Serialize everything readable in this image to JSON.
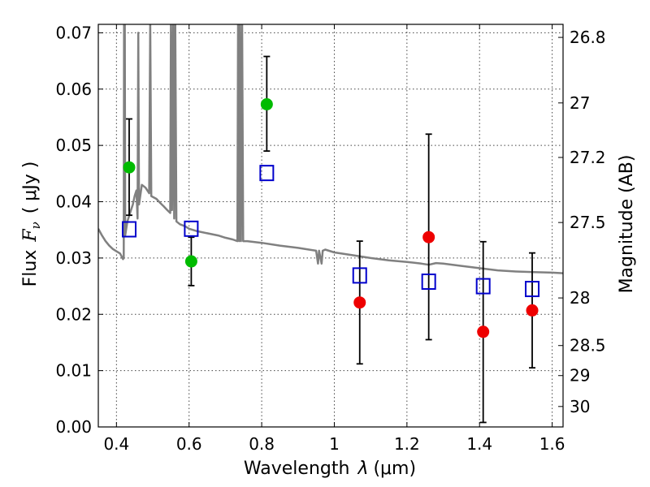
{
  "chart_data": {
    "type": "scatter",
    "xlabel": "Wavelength",
    "xlabel_symbol": "λ",
    "xlabel_unit": "(μm)",
    "ylabel": "Flux",
    "ylabel_symbol": "F",
    "ylabel_sub": "ν",
    "ylabel_unit": "( μJy )",
    "y2label": "Magnitude (AB)",
    "xlim": [
      0.35,
      1.63
    ],
    "ylim": [
      0.0,
      0.0715
    ],
    "grid": true,
    "x_ticks": [
      {
        "v": 0.4,
        "label": "0.4"
      },
      {
        "v": 0.6,
        "label": "0.6"
      },
      {
        "v": 0.8,
        "label": "0.8"
      },
      {
        "v": 1.0,
        "label": "1"
      },
      {
        "v": 1.2,
        "label": "1.2"
      },
      {
        "v": 1.4,
        "label": "1.4"
      },
      {
        "v": 1.6,
        "label": "1.6"
      }
    ],
    "y_ticks": [
      {
        "v": 0.0,
        "label": "0.00"
      },
      {
        "v": 0.01,
        "label": "0.01"
      },
      {
        "v": 0.02,
        "label": "0.02"
      },
      {
        "v": 0.03,
        "label": "0.03"
      },
      {
        "v": 0.04,
        "label": "0.04"
      },
      {
        "v": 0.05,
        "label": "0.05"
      },
      {
        "v": 0.06,
        "label": "0.06"
      },
      {
        "v": 0.07,
        "label": "0.07"
      }
    ],
    "mag_ticks": [
      {
        "mag": 26.8,
        "label": "26.8"
      },
      {
        "mag": 27.0,
        "label": "27"
      },
      {
        "mag": 27.2,
        "label": "27.2"
      },
      {
        "mag": 27.5,
        "label": "27.5"
      },
      {
        "mag": 28.0,
        "label": "28"
      },
      {
        "mag": 28.5,
        "label": "28.5"
      },
      {
        "mag": 29.0,
        "label": "29"
      },
      {
        "mag": 30.0,
        "label": "30"
      }
    ],
    "observed_optical": {
      "color": "#00bb00",
      "points": [
        {
          "x": 0.435,
          "y": 0.0461,
          "ylo": 0.0376,
          "yhi": 0.0547
        },
        {
          "x": 0.606,
          "y": 0.0294,
          "ylo": 0.0251,
          "yhi": 0.0337
        },
        {
          "x": 0.814,
          "y": 0.0573,
          "ylo": 0.049,
          "yhi": 0.0658
        }
      ]
    },
    "observed_nir": {
      "color": "#ee0000",
      "points": [
        {
          "x": 1.07,
          "y": 0.0221,
          "ylo": 0.0112,
          "yhi": 0.033
        },
        {
          "x": 1.26,
          "y": 0.0337,
          "ylo": 0.0155,
          "yhi": 0.052
        },
        {
          "x": 1.41,
          "y": 0.0169,
          "ylo": 0.0008,
          "yhi": 0.0329
        },
        {
          "x": 1.545,
          "y": 0.0207,
          "ylo": 0.0105,
          "yhi": 0.0309
        }
      ]
    },
    "model_photometry": {
      "color": "#0000cc",
      "points": [
        {
          "x": 0.435,
          "y": 0.0351
        },
        {
          "x": 0.606,
          "y": 0.0352
        },
        {
          "x": 0.814,
          "y": 0.0451
        },
        {
          "x": 1.07,
          "y": 0.0269
        },
        {
          "x": 1.26,
          "y": 0.0258
        },
        {
          "x": 1.41,
          "y": 0.025
        },
        {
          "x": 1.545,
          "y": 0.0245
        }
      ]
    },
    "model_spectrum": {
      "color": "#808080",
      "points": [
        [
          0.35,
          0.0352
        ],
        [
          0.36,
          0.034
        ],
        [
          0.37,
          0.033
        ],
        [
          0.38,
          0.0322
        ],
        [
          0.39,
          0.0316
        ],
        [
          0.4,
          0.0312
        ],
        [
          0.41,
          0.0308
        ],
        [
          0.415,
          0.0302
        ],
        [
          0.418,
          0.0298
        ],
        [
          0.42,
          0.03
        ],
        [
          0.421,
          0.072
        ],
        [
          0.423,
          0.072
        ],
        [
          0.424,
          0.034
        ],
        [
          0.43,
          0.0365
        ],
        [
          0.44,
          0.0385
        ],
        [
          0.445,
          0.0395
        ],
        [
          0.45,
          0.041
        ],
        [
          0.455,
          0.042
        ],
        [
          0.458,
          0.037
        ],
        [
          0.46,
          0.07
        ],
        [
          0.462,
          0.0395
        ],
        [
          0.47,
          0.043
        ],
        [
          0.48,
          0.0425
        ],
        [
          0.49,
          0.0415
        ],
        [
          0.493,
          0.0718
        ],
        [
          0.496,
          0.041
        ],
        [
          0.51,
          0.0405
        ],
        [
          0.52,
          0.0398
        ],
        [
          0.53,
          0.0392
        ],
        [
          0.54,
          0.0385
        ],
        [
          0.548,
          0.038
        ],
        [
          0.55,
          0.072
        ],
        [
          0.553,
          0.0385
        ],
        [
          0.556,
          0.072
        ],
        [
          0.559,
          0.037
        ],
        [
          0.562,
          0.072
        ],
        [
          0.565,
          0.0365
        ],
        [
          0.575,
          0.036
        ],
        [
          0.59,
          0.0356
        ],
        [
          0.6,
          0.0352
        ],
        [
          0.62,
          0.0348
        ],
        [
          0.65,
          0.0344
        ],
        [
          0.68,
          0.034
        ],
        [
          0.7,
          0.0336
        ],
        [
          0.72,
          0.0333
        ],
        [
          0.733,
          0.033
        ],
        [
          0.735,
          0.072
        ],
        [
          0.738,
          0.033
        ],
        [
          0.74,
          0.072
        ],
        [
          0.743,
          0.033
        ],
        [
          0.746,
          0.072
        ],
        [
          0.749,
          0.033
        ],
        [
          0.76,
          0.033
        ],
        [
          0.8,
          0.0327
        ],
        [
          0.85,
          0.0322
        ],
        [
          0.9,
          0.0318
        ],
        [
          0.93,
          0.0315
        ],
        [
          0.95,
          0.0313
        ],
        [
          0.955,
          0.029
        ],
        [
          0.958,
          0.0313
        ],
        [
          0.965,
          0.029
        ],
        [
          0.968,
          0.0313
        ],
        [
          0.975,
          0.0315
        ],
        [
          1.0,
          0.031
        ],
        [
          1.05,
          0.0305
        ],
        [
          1.1,
          0.03
        ],
        [
          1.15,
          0.0296
        ],
        [
          1.2,
          0.0293
        ],
        [
          1.24,
          0.029
        ],
        [
          1.26,
          0.0288
        ],
        [
          1.28,
          0.0291
        ],
        [
          1.3,
          0.029
        ],
        [
          1.35,
          0.0286
        ],
        [
          1.4,
          0.0282
        ],
        [
          1.45,
          0.0278
        ],
        [
          1.5,
          0.0276
        ],
        [
          1.55,
          0.0275
        ],
        [
          1.6,
          0.0274
        ],
        [
          1.63,
          0.0273
        ]
      ]
    }
  }
}
